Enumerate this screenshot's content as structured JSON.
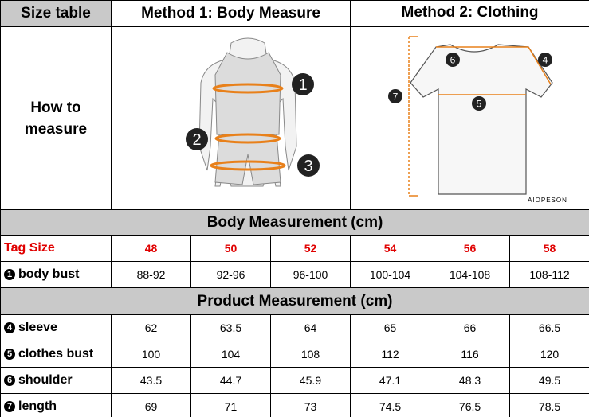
{
  "header": {
    "size_table": "Size table",
    "method1": "Method 1: Body  Measure",
    "method2": "Method 2: Clothing"
  },
  "how_to": "How to measure",
  "method1_markers": [
    "1",
    "2",
    "3"
  ],
  "method2_markers": [
    "6",
    "4",
    "7",
    "5"
  ],
  "brand": "AIOPESON",
  "body_section": "Body Measurement (cm)",
  "tag_size": {
    "label": "Tag Size",
    "values": [
      48,
      50,
      52,
      54,
      56,
      58
    ]
  },
  "body_rows": [
    {
      "marker": "1",
      "label": "body bust",
      "values": [
        "88-92",
        "92-96",
        "96-100",
        "100-104",
        "104-108",
        "108-112"
      ]
    }
  ],
  "product_section": "Product Measurement (cm)",
  "product_rows": [
    {
      "marker": "4",
      "label": "sleeve",
      "values": [
        62,
        63.5,
        64,
        65,
        66,
        66.5
      ]
    },
    {
      "marker": "5",
      "label": "clothes bust",
      "values": [
        100,
        104,
        108,
        112,
        116,
        120
      ]
    },
    {
      "marker": "6",
      "label": "shoulder",
      "values": [
        43.5,
        44.7,
        45.9,
        47.1,
        48.3,
        49.5
      ]
    },
    {
      "marker": "7",
      "label": "length",
      "values": [
        69,
        71,
        73,
        74.5,
        76.5,
        78.5
      ]
    }
  ]
}
